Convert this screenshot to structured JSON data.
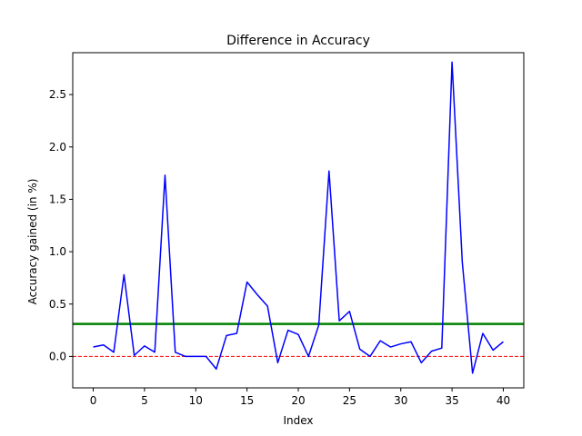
{
  "chart_data": {
    "type": "line",
    "title": "Difference in Accuracy",
    "xlabel": "Index",
    "ylabel": "Accuracy gained (in %)",
    "xlim": [
      -2,
      42
    ],
    "ylim": [
      -0.3,
      2.9
    ],
    "xticks": [
      0,
      5,
      10,
      15,
      20,
      25,
      30,
      35,
      40
    ],
    "yticks": [
      0.0,
      0.5,
      1.0,
      1.5,
      2.0,
      2.5
    ],
    "x": [
      0,
      1,
      2,
      3,
      4,
      5,
      6,
      7,
      8,
      9,
      10,
      11,
      12,
      13,
      14,
      15,
      16,
      17,
      18,
      19,
      20,
      21,
      22,
      23,
      24,
      25,
      26,
      27,
      28,
      29,
      30,
      31,
      32,
      33,
      34,
      35,
      36,
      37,
      38,
      39,
      40
    ],
    "series": [
      {
        "color": "#0000ff",
        "values": [
          0.09,
          0.11,
          0.04,
          0.78,
          0.01,
          0.1,
          0.04,
          1.73,
          0.04,
          0.0,
          0.0,
          0.0,
          -0.12,
          0.2,
          0.22,
          0.71,
          0.59,
          0.48,
          -0.06,
          0.25,
          0.21,
          0.0,
          0.3,
          1.77,
          0.34,
          0.43,
          0.07,
          0.0,
          0.15,
          0.09,
          0.12,
          0.14,
          -0.06,
          0.05,
          0.08,
          2.81,
          0.9,
          -0.16,
          0.22,
          0.06,
          0.14
        ]
      }
    ],
    "hlines": [
      {
        "y": 0.31,
        "color": "#008000",
        "style": "solid"
      },
      {
        "y": 0.0,
        "color": "#ff0000",
        "style": "dashed"
      }
    ]
  }
}
